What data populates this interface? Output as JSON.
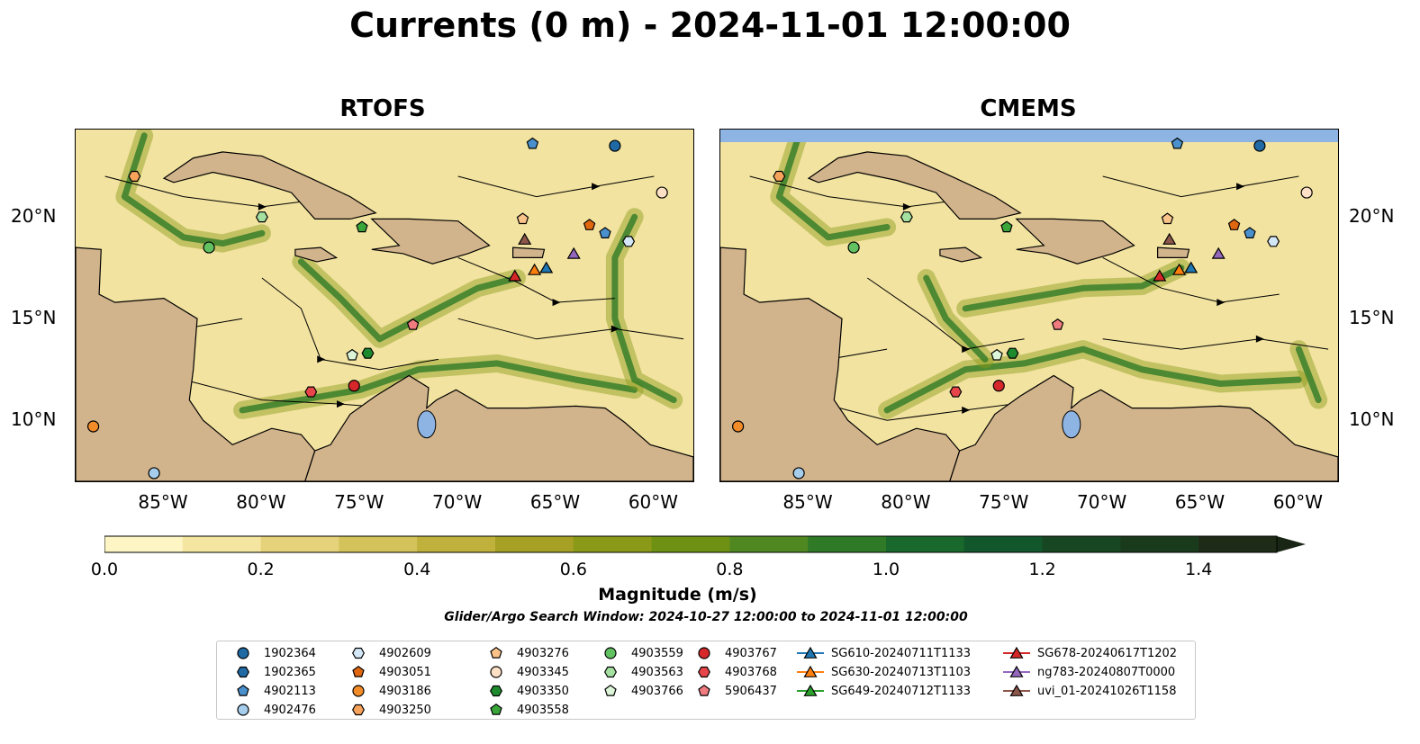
{
  "title": "Currents (0 m) - 2024-11-01 12:00:00",
  "panels": [
    {
      "title": "RTOFS"
    },
    {
      "title": "CMEMS"
    }
  ],
  "axes": {
    "lon_ticks": [
      "85°W",
      "80°W",
      "75°W",
      "70°W",
      "65°W",
      "60°W"
    ],
    "lat_ticks": [
      "20°N",
      "15°N",
      "10°N"
    ],
    "lon_range": [
      -89.5,
      -58.0
    ],
    "lat_range": [
      7.0,
      24.3
    ]
  },
  "colorbar": {
    "label": "Magnitude (m/s)",
    "ticks": [
      "0.0",
      "0.2",
      "0.4",
      "0.6",
      "0.8",
      "1.0",
      "1.2",
      "1.4"
    ],
    "range": [
      0.0,
      1.5
    ],
    "extend": "max",
    "colors": [
      "#fdf6c4",
      "#f4e6a0",
      "#e6d27a",
      "#d3c35a",
      "#bfb13c",
      "#a6a024",
      "#8a9918",
      "#6e9114",
      "#4f8720",
      "#2f7a26",
      "#19682c",
      "#12562c",
      "#174622",
      "#1a3a1c",
      "#1e2b17"
    ]
  },
  "search_window": "Glider/Argo Search Window: 2024-10-27 12:00:00 to 2024-11-01 12:00:00",
  "legend": {
    "columns": [
      [
        {
          "label": "1902364",
          "marker": "circle",
          "color": "#1f6aa5"
        },
        {
          "label": "1902365",
          "marker": "hexagon",
          "color": "#1f6aa5"
        },
        {
          "label": "4902113",
          "marker": "pentagon",
          "color": "#4a90cc"
        },
        {
          "label": "4902476",
          "marker": "circle",
          "color": "#a6cdec"
        }
      ],
      [
        {
          "label": "4902609",
          "marker": "hexagon",
          "color": "#d4e7f7"
        },
        {
          "label": "4903051",
          "marker": "pentagon",
          "color": "#e0670f"
        },
        {
          "label": "4903186",
          "marker": "circle",
          "color": "#f28c28"
        },
        {
          "label": "4903250",
          "marker": "hexagon",
          "color": "#f7a35c"
        }
      ],
      [
        {
          "label": "4903276",
          "marker": "pentagon",
          "color": "#f9c38a"
        },
        {
          "label": "4903345",
          "marker": "circle",
          "color": "#fde0c5"
        },
        {
          "label": "4903350",
          "marker": "hexagon",
          "color": "#1e8a2e"
        },
        {
          "label": "4903558",
          "marker": "pentagon",
          "color": "#3aa63a"
        }
      ],
      [
        {
          "label": "4903559",
          "marker": "circle",
          "color": "#62c262"
        },
        {
          "label": "4903563",
          "marker": "hexagon",
          "color": "#a4e0a0"
        },
        {
          "label": "4903766",
          "marker": "pentagon",
          "color": "#dcf5d8"
        }
      ],
      [
        {
          "label": "4903767",
          "marker": "circle",
          "color": "#d6272b"
        },
        {
          "label": "4903768",
          "marker": "hexagon",
          "color": "#e8454a"
        },
        {
          "label": "5906437",
          "marker": "pentagon",
          "color": "#f07c80"
        }
      ],
      [
        {
          "label": "SG610-20240711T1133",
          "marker": "triangle",
          "color": "#1f77b4"
        },
        {
          "label": "SG630-20240713T1103",
          "marker": "triangle",
          "color": "#ff7f0e"
        },
        {
          "label": "SG649-20240712T1133",
          "marker": "triangle",
          "color": "#2ca02c"
        }
      ],
      [
        {
          "label": "SG678-20240617T1202",
          "marker": "triangle",
          "color": "#d62728"
        },
        {
          "label": "ng783-20240807T0000",
          "marker": "triangle",
          "color": "#9467bd"
        },
        {
          "label": "uvi_01-20241026T1158",
          "marker": "triangle",
          "color": "#8c564b"
        }
      ]
    ]
  },
  "platforms": [
    {
      "id": "1902364",
      "lon": -62.0,
      "lat": 23.5
    },
    {
      "id": "4902113",
      "lon": -66.2,
      "lat": 23.6
    },
    {
      "id": "4903186",
      "lon": -88.6,
      "lat": 9.7
    },
    {
      "id": "4902476",
      "lon": -85.5,
      "lat": 7.4
    },
    {
      "id": "4903250",
      "lon": -86.5,
      "lat": 22.0
    },
    {
      "id": "4903345",
      "lon": -59.6,
      "lat": 21.2
    },
    {
      "id": "4903559",
      "lon": -82.7,
      "lat": 18.5
    },
    {
      "id": "4903563",
      "lon": -80.0,
      "lat": 20.0
    },
    {
      "id": "4903558",
      "lon": -74.9,
      "lat": 19.5
    },
    {
      "id": "4903276",
      "lon": -66.7,
      "lat": 19.9
    },
    {
      "id": "4903051",
      "lon": -63.3,
      "lat": 19.6
    },
    {
      "id": "4902113b",
      "lon": -62.5,
      "lat": 19.2
    },
    {
      "id": "4902609",
      "lon": -61.3,
      "lat": 18.8
    },
    {
      "id": "5906437",
      "lon": -72.3,
      "lat": 14.7
    },
    {
      "id": "4903350",
      "lon": -74.6,
      "lat": 13.3
    },
    {
      "id": "4903766",
      "lon": -75.4,
      "lat": 13.2
    },
    {
      "id": "4903768",
      "lon": -77.5,
      "lat": 11.4
    },
    {
      "id": "4903767",
      "lon": -75.3,
      "lat": 11.7
    },
    {
      "id": "SG678-20240617T1202",
      "lon": -67.1,
      "lat": 17.1
    },
    {
      "id": "SG630-20240713T1103",
      "lon": -66.1,
      "lat": 17.4
    },
    {
      "id": "SG610-20240711T1133",
      "lon": -65.5,
      "lat": 17.5
    },
    {
      "id": "uvi_01-20241026T1158",
      "lon": -66.6,
      "lat": 18.9
    },
    {
      "id": "ng783-20240807T0000",
      "lon": -64.1,
      "lat": 18.2
    }
  ]
}
